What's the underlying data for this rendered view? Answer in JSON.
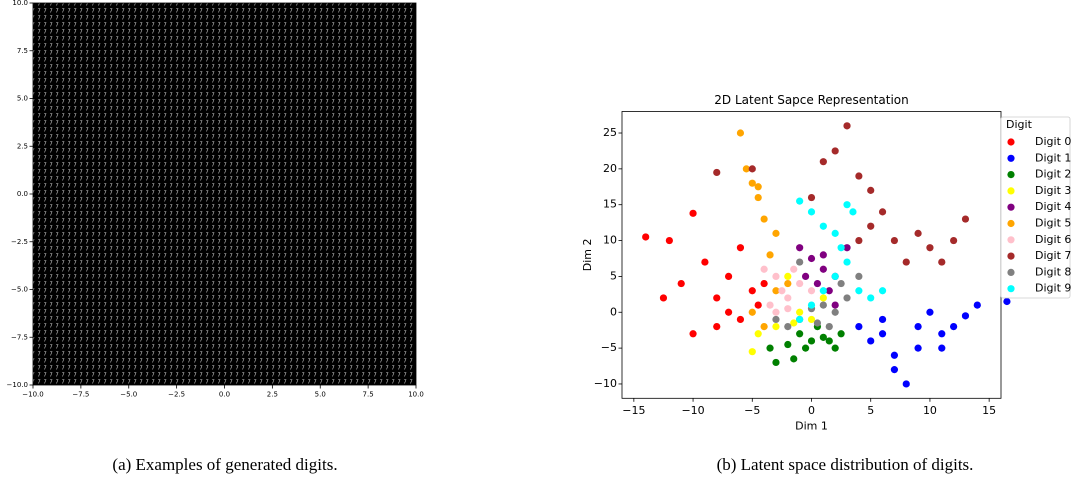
{
  "chart_data": [
    {
      "type": "image",
      "caption": "(a) Examples of generated digits.",
      "xlim": [
        -10,
        10
      ],
      "ylim": [
        -10,
        10
      ],
      "xticks": [
        {
          "value": -10,
          "label": "−10.0"
        },
        {
          "value": -7.5,
          "label": "−7.5"
        },
        {
          "value": -5,
          "label": "−5.0"
        },
        {
          "value": -2.5,
          "label": "−2.5"
        },
        {
          "value": 0,
          "label": "0.0"
        },
        {
          "value": 2.5,
          "label": "2.5"
        },
        {
          "value": 5,
          "label": "5.0"
        },
        {
          "value": 7.5,
          "label": "7.5"
        },
        {
          "value": 10,
          "label": "10.0"
        }
      ],
      "yticks": [
        {
          "value": -10,
          "label": "−10.0"
        },
        {
          "value": -7.5,
          "label": "−7.5"
        },
        {
          "value": -5,
          "label": "−5.0"
        },
        {
          "value": -2.5,
          "label": "−2.5"
        },
        {
          "value": 0,
          "label": "0.0"
        },
        {
          "value": 2.5,
          "label": "2.5"
        },
        {
          "value": 5,
          "label": "5.0"
        },
        {
          "value": 7.5,
          "label": "7.5"
        },
        {
          "value": 10,
          "label": "10.0"
        }
      ]
    },
    {
      "type": "scatter",
      "title": "2D Latent Sapce Representation",
      "caption": "(b) Latent space distribution of digits.",
      "x_label": "Dim 1",
      "y_label": "Dim 2",
      "legend_title": "Digit",
      "legend": "upper right",
      "xlim": [
        -16,
        16
      ],
      "ylim": [
        -12,
        28
      ],
      "xticks": [
        {
          "value": -15,
          "label": "−15"
        },
        {
          "value": -10,
          "label": "−10"
        },
        {
          "value": -5,
          "label": "−5"
        },
        0,
        5,
        10,
        15
      ],
      "yticks": [
        {
          "value": -10,
          "label": "−10"
        },
        {
          "value": -5,
          "label": "−5"
        },
        0,
        5,
        10,
        15,
        20,
        25
      ],
      "series": [
        {
          "name": "Digit 0",
          "color": "#ff0000",
          "x": [
            -14,
            -12,
            -11,
            -12.5,
            -10,
            -9,
            -8,
            -7,
            -6,
            -5,
            -4,
            -10,
            -8,
            -6,
            -7,
            -4.5
          ],
          "y": [
            10.5,
            10,
            4,
            2,
            13.8,
            7,
            2,
            5,
            -1,
            3,
            4,
            -3,
            -2,
            9,
            0,
            1
          ]
        },
        {
          "name": "Digit 1",
          "color": "#0000ff",
          "x": [
            4,
            5,
            6,
            7,
            8,
            9,
            10,
            11,
            12,
            13,
            14,
            16.5,
            7,
            9,
            6,
            11
          ],
          "y": [
            -2,
            -4,
            -3,
            -6,
            -10,
            -5,
            0,
            -3,
            -2,
            -0.5,
            1,
            1.5,
            -8,
            -2,
            -1,
            -5
          ]
        },
        {
          "name": "Digit 2",
          "color": "#008000",
          "x": [
            -3.5,
            -2,
            -1,
            0,
            1,
            2,
            -1.5,
            -3,
            0.5,
            1.5,
            -0.5,
            2.5
          ],
          "y": [
            -5,
            -4.5,
            -3,
            -4,
            -3.5,
            -5,
            -6.5,
            -7,
            -2,
            -4,
            -5,
            -3
          ]
        },
        {
          "name": "Digit 3",
          "color": "#ffff00",
          "x": [
            -5,
            -3,
            -2,
            -1,
            0,
            -4.5,
            1,
            -1.5
          ],
          "y": [
            -5.5,
            -2,
            5,
            0,
            -1,
            -3,
            2,
            -1.5
          ]
        },
        {
          "name": "Digit 4",
          "color": "#800080",
          "x": [
            -1,
            0,
            1,
            2,
            1.5,
            0.5,
            3,
            2,
            -0.5,
            1
          ],
          "y": [
            9,
            7.5,
            6,
            5,
            3,
            4,
            9,
            1,
            5,
            8
          ]
        },
        {
          "name": "Digit 5",
          "color": "#ffa500",
          "x": [
            -6,
            -5.5,
            -5,
            -4.5,
            -4,
            -3,
            -3.5,
            -5,
            -4,
            -2,
            -3,
            -4.5
          ],
          "y": [
            25,
            20,
            18,
            16,
            13,
            11,
            8,
            0,
            -2,
            4,
            3,
            17.5
          ]
        },
        {
          "name": "Digit 6",
          "color": "#ffc0cb",
          "x": [
            -4,
            -3,
            -2,
            -1,
            -3,
            -2.5,
            -1.5,
            0,
            -3.5,
            -2
          ],
          "y": [
            6,
            5,
            2,
            4,
            0,
            3,
            6,
            3,
            1,
            0.5
          ]
        },
        {
          "name": "Digit 7",
          "color": "#a52a2a",
          "x": [
            1,
            2,
            3,
            4,
            5,
            6,
            7,
            8,
            9,
            10,
            11,
            12,
            13,
            5,
            4,
            -8,
            -5,
            0
          ],
          "y": [
            21,
            22.5,
            26,
            19,
            17,
            14,
            10,
            7,
            11,
            9,
            7,
            10,
            13,
            12,
            10,
            19.5,
            20,
            16
          ]
        },
        {
          "name": "Digit 8",
          "color": "#808080",
          "x": [
            -2,
            -1,
            0,
            1,
            2,
            3,
            -3,
            0.5,
            1.5,
            2.5,
            4,
            -1
          ],
          "y": [
            -2,
            -1,
            0.5,
            1,
            0,
            2,
            -1,
            -1.5,
            -2,
            4,
            5,
            7
          ]
        },
        {
          "name": "Digit 9",
          "color": "#00ffff",
          "x": [
            -1,
            0,
            1,
            2,
            2.5,
            3,
            3.5,
            4,
            5,
            6,
            2,
            1,
            3,
            -1,
            0
          ],
          "y": [
            15.5,
            14,
            12,
            11,
            9,
            7,
            14,
            3,
            2,
            3,
            5,
            3,
            15,
            -1,
            1
          ]
        }
      ]
    }
  ]
}
